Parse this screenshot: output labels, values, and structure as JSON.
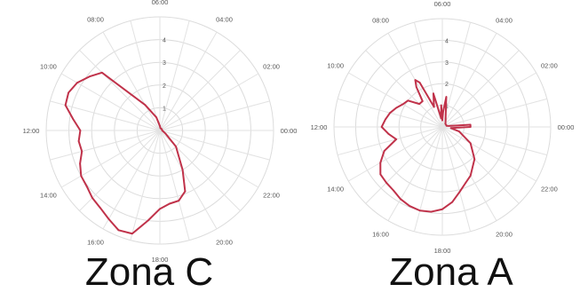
{
  "chart_data": [
    {
      "type": "polar-line",
      "title": "Zona C",
      "angle_labels": [
        "00:00",
        "02:00",
        "04:00",
        "06:00",
        "08:00",
        "10:00",
        "12:00",
        "14:00",
        "16:00",
        "18:00",
        "20:00",
        "22:00"
      ],
      "radial_ticks": [
        "1",
        "2",
        "3",
        "4"
      ],
      "rlim": [
        0,
        4
      ],
      "series_color": "#c0324a",
      "theta_hours": [
        0,
        1,
        2,
        3,
        4,
        5,
        6,
        7,
        8,
        9,
        9.5,
        10,
        10.5,
        11,
        11.5,
        12,
        12.5,
        13,
        13.5,
        14,
        14.5,
        15,
        15.5,
        16,
        16.5,
        17,
        17.5,
        18,
        18.5,
        19,
        19.5,
        20,
        21,
        22,
        23
      ],
      "r": [
        0.1,
        0.1,
        0.1,
        0.1,
        0.1,
        0.1,
        0.2,
        0.6,
        1.3,
        3.6,
        3.9,
        4.2,
        4.35,
        4.3,
        3.85,
        3.5,
        3.6,
        3.55,
        3.8,
        4.0,
        4.05,
        4.2,
        4.3,
        4.5,
        4.75,
        4.7,
        4.0,
        3.45,
        3.25,
        3.2,
        2.9,
        2.0,
        1.0,
        0.3,
        0.15
      ]
    },
    {
      "type": "polar-line",
      "title": "Zona A",
      "angle_labels": [
        "00:00",
        "02:00",
        "04:00",
        "06:00",
        "08:00",
        "10:00",
        "12:00",
        "14:00",
        "16:00",
        "18:00",
        "20:00",
        "22:00"
      ],
      "radial_ticks": [
        "1",
        "2",
        "3",
        "4"
      ],
      "rlim": [
        0,
        4
      ],
      "series_color": "#c0324a",
      "theta_hours": [
        0,
        0.3,
        0.6,
        1,
        1.5,
        2,
        3,
        4,
        5,
        5.5,
        5.8,
        6,
        6.2,
        6.5,
        7,
        7.5,
        7.8,
        8,
        8.2,
        8.5,
        9,
        9.5,
        10,
        10.5,
        11,
        11.5,
        12,
        12.5,
        13,
        13.5,
        14,
        14.5,
        15,
        15.5,
        16,
        16.5,
        17,
        17.5,
        18,
        18.5,
        19,
        19.5,
        20,
        21,
        22,
        23,
        23.5
      ],
      "r": [
        1.3,
        1.3,
        0.3,
        0.2,
        0.2,
        0.2,
        0.2,
        0.3,
        0.6,
        1.4,
        0.7,
        0.3,
        1.0,
        0.4,
        1.6,
        1.0,
        2.3,
        2.5,
        2.2,
        1.5,
        1.5,
        2.0,
        2.1,
        2.3,
        2.5,
        2.65,
        2.8,
        2.5,
        2.2,
        2.9,
        3.3,
        3.6,
        3.65,
        3.7,
        3.85,
        3.95,
        4.0,
        3.95,
        3.8,
        3.5,
        3.1,
        2.8,
        2.6,
        2.1,
        1.5,
        0.8,
        0.4
      ]
    }
  ]
}
